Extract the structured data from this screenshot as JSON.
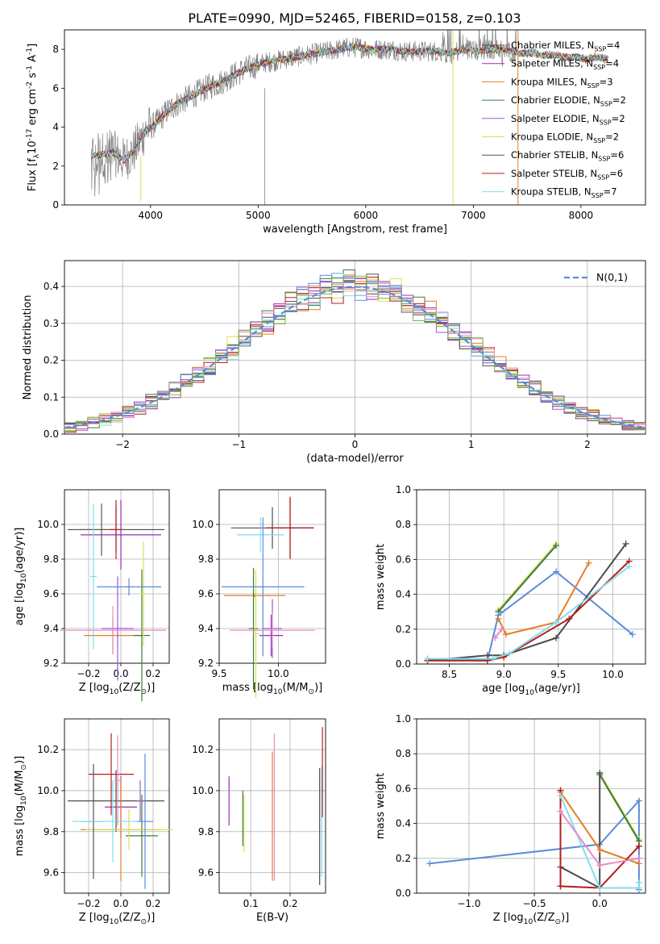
{
  "figure": {
    "title": "PLATE=0990, MJD=52465, FIBERID=0158, z=0.103"
  },
  "colors": {
    "c1": "#4d4d4d",
    "c2": "#9a2cb8",
    "c3": "#e67e22",
    "c4": "#3d7a3d",
    "c5": "#9b59d0",
    "c6": "#d4e157",
    "c7": "#555555",
    "c8": "#b71c1c",
    "c9": "#80deea",
    "blue": "#5b8bd9",
    "pink": "#e88ac8",
    "green": "#7cb342",
    "gray": "#808080"
  },
  "chart_data": [
    {
      "id": "spectrum",
      "type": "line",
      "xlabel": "wavelength [Angstrom, rest frame]",
      "ylabel": "Flux [f$_\\lambda$10$^{-17}$ erg cm$^{-2}$ s$^{-1}$ A$^{-1}$]",
      "xlim": [
        3200,
        8600
      ],
      "ylim": [
        0,
        9
      ],
      "xticks": [
        4000,
        5000,
        6000,
        7000,
        8000
      ],
      "yticks": [
        0,
        2,
        4,
        6,
        8
      ],
      "grid": false,
      "legend_position": "upper-right",
      "legend": [
        {
          "label": "Chabrier MILES, N$_{SSP}$=4",
          "color": "#4d4d4d"
        },
        {
          "label": "Salpeter MILES, N$_{SSP}$=4",
          "color": "#9a2cb8"
        },
        {
          "label": "Kroupa MILES, N$_{SSP}$=3",
          "color": "#e67e22"
        },
        {
          "label": "Chabrier ELODIE, N$_{SSP}$=2",
          "color": "#3d7a3d"
        },
        {
          "label": "Salpeter ELODIE, N$_{SSP}$=2",
          "color": "#9b59d0"
        },
        {
          "label": "Kroupa ELODIE, N$_{SSP}$=2",
          "color": "#d4e157"
        },
        {
          "label": "Chabrier STELIB, N$_{SSP}$=6",
          "color": "#555555"
        },
        {
          "label": "Salpeter STELIB, N$_{SSP}$=6",
          "color": "#b71c1c"
        },
        {
          "label": "Kroupa STELIB, N$_{SSP}$=7",
          "color": "#80deea"
        }
      ],
      "series": [
        {
          "x": [
            3450,
            3550,
            3650,
            3750,
            3850,
            3950,
            4050,
            4150,
            4250,
            4350,
            4450,
            4550,
            4650,
            4750,
            4850,
            4950,
            5050,
            5150,
            5250,
            5350,
            5450,
            5550,
            5650,
            5750,
            5850,
            5950,
            6050,
            6150,
            6250,
            6350,
            6450,
            6550,
            6650,
            6750,
            6850,
            6950,
            7050,
            7150,
            7250,
            7350,
            7450,
            7550,
            7650,
            7750,
            7850,
            7950,
            8050,
            8150,
            8250
          ],
          "y": [
            2.5,
            2.6,
            2.7,
            2.3,
            2.8,
            3.8,
            4.2,
            4.8,
            5.2,
            5.5,
            5.8,
            6.1,
            6.3,
            6.6,
            6.9,
            7.1,
            7.3,
            7.4,
            7.5,
            7.6,
            7.7,
            7.8,
            7.9,
            8.0,
            8.1,
            8.1,
            8.0,
            8.0,
            8.0,
            7.9,
            7.9,
            7.9,
            7.9,
            7.8,
            7.9,
            8.0,
            7.9,
            8.0,
            8.0,
            7.9,
            7.8,
            7.8,
            7.7,
            7.7,
            7.6,
            7.6,
            7.5,
            7.6,
            7.5
          ]
        }
      ]
    },
    {
      "id": "residuals",
      "type": "line",
      "xlabel": "(data-model)/error",
      "ylabel": "Normed distribution",
      "xlim": [
        -2.5,
        2.5
      ],
      "ylim": [
        0,
        0.47
      ],
      "xticks": [
        -2,
        -1,
        0,
        1,
        2
      ],
      "yticks": [
        0.0,
        0.1,
        0.2,
        0.3,
        0.4
      ],
      "grid": true,
      "legend_position": "upper-right",
      "legend": [
        {
          "label": "$\\mathcal{N}(0,1)$",
          "color": "#5b8bd9"
        }
      ]
    },
    {
      "id": "age_vs_Z",
      "type": "scatter",
      "xlabel": "Z [log$_{10}$(Z/Z$_\\odot$)]",
      "ylabel": "age  [log$_{10}$(age/yr)]",
      "xlim": [
        -0.35,
        0.3
      ],
      "ylim": [
        9.2,
        10.2
      ],
      "xticks": [
        -0.2,
        0.0,
        0.2
      ],
      "yticks": [
        9.2,
        9.4,
        9.6,
        9.8,
        10.0
      ],
      "grid": true
    },
    {
      "id": "age_vs_mass",
      "type": "scatter",
      "xlabel": "mass [log$_{10}$(M/M$_\\odot$)]",
      "ylabel": "",
      "xlim": [
        9.5,
        10.4
      ],
      "ylim": [
        9.2,
        10.2
      ],
      "xticks": [
        9.5,
        10.0
      ],
      "yticks": [
        9.2,
        9.4,
        9.6,
        9.8,
        10.0
      ],
      "grid": true
    },
    {
      "id": "massweight_vs_age",
      "type": "line",
      "xlabel": "age  [log$_{10}$(age/yr)]",
      "ylabel": "mass weight",
      "xlim": [
        8.2,
        10.3
      ],
      "ylim": [
        0.0,
        1.0
      ],
      "xticks": [
        8.5,
        9.0,
        9.5,
        10.0
      ],
      "yticks": [
        0.0,
        0.2,
        0.4,
        0.6,
        0.8,
        1.0
      ],
      "grid": true
    },
    {
      "id": "mass_vs_Z",
      "type": "scatter",
      "xlabel": "Z [log$_{10}$(Z/Z$_\\odot$)]",
      "ylabel": "mass [log$_{10}$(M/M$_\\odot$)]",
      "xlim": [
        -0.35,
        0.3
      ],
      "ylim": [
        9.5,
        10.35
      ],
      "xticks": [
        -0.2,
        0.0,
        0.2
      ],
      "yticks": [
        9.6,
        9.8,
        10.0,
        10.2
      ],
      "grid": true
    },
    {
      "id": "mass_vs_EBV",
      "type": "scatter",
      "xlabel": "E(B-V)",
      "ylabel": "",
      "xlim": [
        0.02,
        0.29
      ],
      "ylim": [
        9.5,
        10.35
      ],
      "xticks": [
        0.1,
        0.2
      ],
      "yticks": [
        9.6,
        9.8,
        10.0,
        10.2
      ],
      "grid": true
    },
    {
      "id": "massweight_vs_Z",
      "type": "line",
      "xlabel": "Z [log$_{10}$(Z/Z$_\\odot$)]",
      "ylabel": "mass weight",
      "xlim": [
        -1.4,
        0.35
      ],
      "ylim": [
        0.0,
        1.0
      ],
      "xticks": [
        -1.0,
        -0.5,
        0.0
      ],
      "yticks": [
        0.0,
        0.2,
        0.4,
        0.6,
        0.8,
        1.0
      ],
      "grid": true
    }
  ]
}
